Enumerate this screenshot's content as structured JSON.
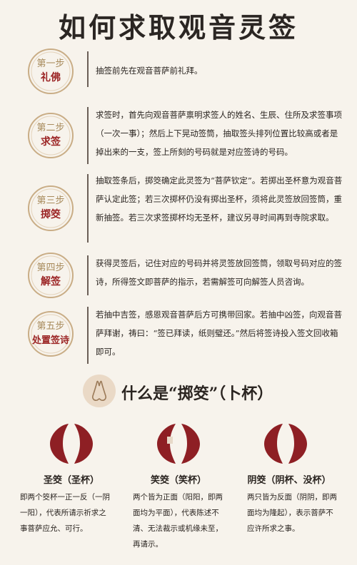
{
  "title": "如何求取观音灵签",
  "steps": [
    {
      "num": "第一步",
      "name": "礼佛",
      "text": "抽签前先在观音菩萨前礼拜。"
    },
    {
      "num": "第二步",
      "name": "求签",
      "text": "求签时，首先向观音菩萨禀明求签人的姓名、生辰、住所及求签事项（一次一事）；然后上下晃动签筒，抽取签头排列位置比较高或者是掉出来的一支，签上所刻的号码就是对应签诗的号码。"
    },
    {
      "num": "第三步",
      "name": "掷筊",
      "text": "抽取签条后，掷筊确定此灵签为“菩萨钦定”。若掷出圣杯意为观音菩萨认定此签；若三次掷杯仍没有掷出圣杯，须将此灵签放回签筒，重新抽签。若三次求签掷杯均无圣杯，建议另寻时间再到寺院求取。"
    },
    {
      "num": "第四步",
      "name": "解签",
      "text": "获得灵签后，记住对应的号码并将灵签放回签筒，领取号码对应的签诗，所得签文即菩萨的指示，若需解签可向解签人员咨询。"
    },
    {
      "num": "第五步",
      "name": "处置签诗",
      "text": "若抽中吉签，感恩观音菩萨后方可携带回家。若抽中凶签，向观音菩萨拜谢，祷曰：“签已拜读，纸则璧还。”然后将签诗投入签文回收箱即可。"
    }
  ],
  "section": {
    "title": "什么是“掷筊”（卜杯）"
  },
  "cups": [
    {
      "label": "圣筊（圣杯）",
      "text": "即两个筊杯一正一反（一阴一阳），代表所请示祈求之事菩萨应允、可行。"
    },
    {
      "label": "笑筊（笑杯）",
      "text": "两个皆为正面（阳阳，即两面均为平面），代表陈述不清、无法裁示或机缘未至，再请示。"
    },
    {
      "label": "阴筊（阴杯、没杯）",
      "text": "两只皆为反面（阴阴，即两面均为隆起），表示菩萨不应许所求之事。"
    }
  ],
  "colors": {
    "accent": "#9b2424",
    "cup": "#8e1f24",
    "badge_border": "#c9ad86"
  }
}
